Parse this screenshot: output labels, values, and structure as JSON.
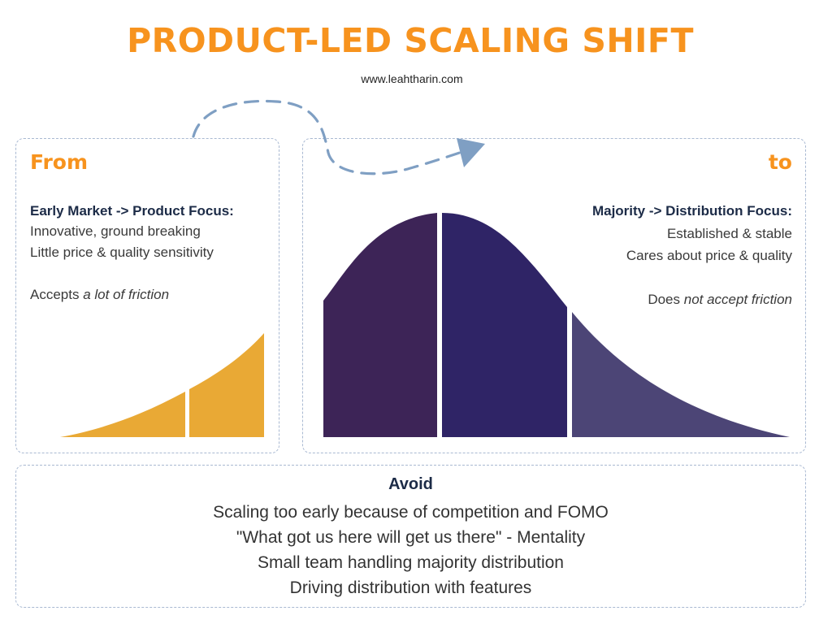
{
  "title": "PRODUCT-LED SCALING SHIFT",
  "subtitle": "www.leahtharin.com",
  "colors": {
    "title": "#f7931e",
    "heading": "#f7931e",
    "dark_text": "#1c2b47",
    "body_text": "#3a3a3a",
    "arrow": "#7f9fc3",
    "early_curve": "#e9a935",
    "majority_left": "#3d2457",
    "majority_center": "#2f2466",
    "majority_right": "#4c4576",
    "panel_border": "#a9b9d2"
  },
  "from_panel": {
    "heading": "From",
    "focus_title": "Early Market -> Product Focus:",
    "lines": [
      "Innovative, ground breaking",
      "Little price & quality sensitivity"
    ],
    "friction_prefix": "Accepts ",
    "friction_emphasis": "a lot of friction"
  },
  "to_panel": {
    "heading": "to",
    "focus_title": "Majority -> Distribution Focus:",
    "lines": [
      "Established  &  stable",
      "Cares about price & quality"
    ],
    "friction_prefix": "Does ",
    "friction_emphasis": "not accept friction"
  },
  "avoid_panel": {
    "title": "Avoid",
    "items": [
      "Scaling too early because of competition and FOMO",
      "\"What got us here will get us there\" - Mentality",
      "Small team handling majority distribution",
      "Driving distribution with features"
    ]
  },
  "icons": [
    "dashed-curved-arrow-icon"
  ]
}
